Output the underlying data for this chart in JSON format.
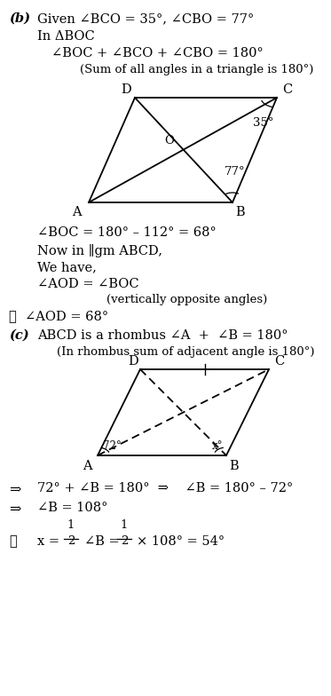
{
  "bg_color": "#ffffff",
  "fig_width": 3.73,
  "fig_height": 7.84,
  "dpi": 100,
  "part_b_header": "(b)  Given ∠BCO = 35°, ∠CBO = 77°",
  "part_b_l1": "In ΔBOC",
  "part_b_l2": "∠BOC + ∠BCO + ∠CBO = 180°",
  "part_b_l3": "(Sum of all angles in a triangle is 180°)",
  "part_b_l4": "∠BOC = 180° – 112° = 68°",
  "part_b_l5": "Now in ∥gm ABCD,",
  "part_b_l6": "We have,",
  "part_b_l7": "∠AOD = ∠BOC",
  "part_b_l8": "(vertically opposite angles)",
  "part_b_l9": "∴  ∠AOD = 68°",
  "part_c_header": "(c)  ABCD is a rhombus ∠A  +  ∠B = 180°",
  "part_c_l1": "(In rhombus sum of adjacent angle is 180°)",
  "part_c_l2a": "72° + ∠B = 180°",
  "part_c_l2b": "∠B = 180° – 72°",
  "part_c_l3": "∠B = 108°",
  "part_c_l4a": "x =",
  "part_c_l4b": "∠B =",
  "part_c_l4c": "× 108° = 54°"
}
